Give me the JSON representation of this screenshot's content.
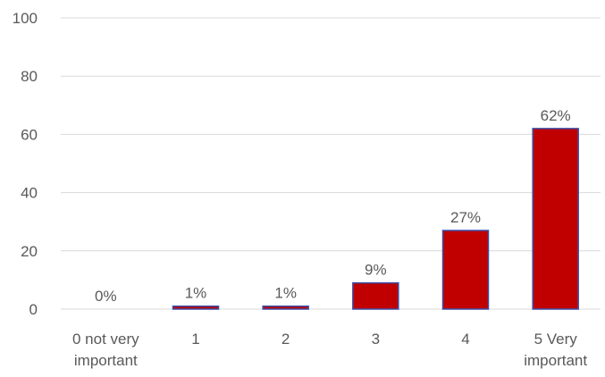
{
  "chart_data": {
    "type": "bar",
    "categories": [
      "0 not very important",
      "1",
      "2",
      "3",
      "4",
      "5 Very important"
    ],
    "category_lines": [
      [
        "0 not very",
        "important"
      ],
      [
        "1"
      ],
      [
        "2"
      ],
      [
        "3"
      ],
      [
        "4"
      ],
      [
        "5 Very",
        "important"
      ]
    ],
    "values": [
      0,
      1,
      1,
      9,
      27,
      62
    ],
    "data_labels": [
      "0%",
      "1%",
      "1%",
      "9%",
      "27%",
      "62%"
    ],
    "yticks": [
      "0",
      "20",
      "40",
      "60",
      "80",
      "100"
    ],
    "ylim": [
      0,
      100
    ],
    "title": "",
    "xlabel": "",
    "ylabel": "",
    "grid": true,
    "legend": "none",
    "colors": {
      "bar_fill": "#c00000",
      "bar_stroke": "#3b4fa8",
      "grid": "#d9d9d9",
      "text": "#595959"
    }
  }
}
